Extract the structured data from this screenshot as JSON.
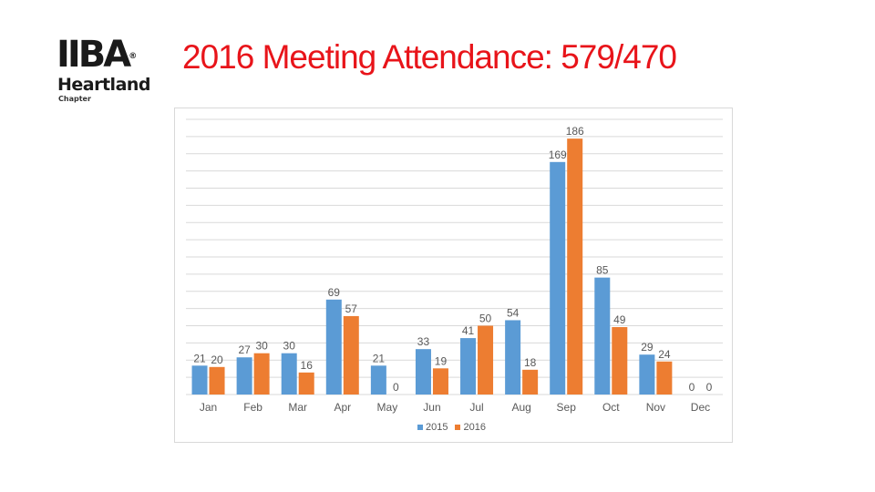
{
  "logo": {
    "mark": "IIBA",
    "reg": "®",
    "word": "Heartland",
    "sub": "Chapter"
  },
  "title": "2016 Meeting Attendance: 579/470",
  "colors": {
    "series_2015": "#5b9bd5",
    "series_2016": "#ed7d31",
    "title": "#e8141a",
    "grid": "#d9d9d9",
    "label": "#595959"
  },
  "chart_data": {
    "type": "bar",
    "categories": [
      "Jan",
      "Feb",
      "Mar",
      "Apr",
      "May",
      "Jun",
      "Jul",
      "Aug",
      "Sep",
      "Oct",
      "Nov",
      "Dec"
    ],
    "series": [
      {
        "name": "2015",
        "values": [
          21,
          27,
          30,
          69,
          21,
          33,
          41,
          54,
          169,
          85,
          29,
          0
        ]
      },
      {
        "name": "2016",
        "values": [
          20,
          30,
          16,
          57,
          0,
          19,
          50,
          18,
          186,
          49,
          24,
          0
        ]
      }
    ],
    "ylim": [
      0,
      200
    ],
    "grid": true,
    "gridlines": 16,
    "legend_position": "bottom",
    "data_labels": true,
    "xlabel": "",
    "ylabel": ""
  }
}
